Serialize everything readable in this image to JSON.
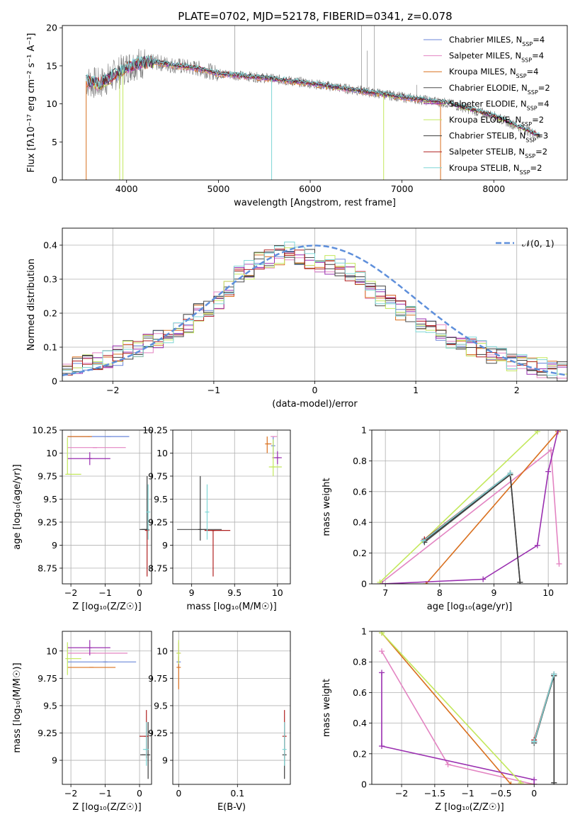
{
  "figure_title": "PLATE=0702, MJD=52178, FIBERID=0341, z=0.078",
  "colors": {
    "chabrier_miles": "#6a86d8",
    "salpeter_miles": "#e384c2",
    "kroupa_miles": "#d9701f",
    "chabrier_elodie": "#4b4b4b",
    "salpeter_elodie": "#9a2fb0",
    "kroupa_elodie": "#c3e85c",
    "chabrier_stelib": "#3d3d3d",
    "salpeter_stelib": "#b02020",
    "kroupa_stelib": "#7fd6d6",
    "data_spectrum": "#7a7a7a",
    "normal_curve": "#5e8fdb"
  },
  "legend": [
    {
      "key": "chabrier_miles",
      "label": "Chabrier MILES, N",
      "sub": "SSP",
      "suffix": "=4"
    },
    {
      "key": "salpeter_miles",
      "label": "Salpeter MILES, N",
      "sub": "SSP",
      "suffix": "=4"
    },
    {
      "key": "kroupa_miles",
      "label": "Kroupa MILES, N",
      "sub": "SSP",
      "suffix": "=4"
    },
    {
      "key": "chabrier_elodie",
      "label": "Chabrier ELODIE, N",
      "sub": "SSP",
      "suffix": "=2"
    },
    {
      "key": "salpeter_elodie",
      "label": "Salpeter ELODIE, N",
      "sub": "SSP",
      "suffix": "=4"
    },
    {
      "key": "kroupa_elodie",
      "label": "Kroupa ELODIE, N",
      "sub": "SSP",
      "suffix": "=2"
    },
    {
      "key": "chabrier_stelib",
      "label": "Chabrier STELIB, N",
      "sub": "SSP",
      "suffix": "=3"
    },
    {
      "key": "salpeter_stelib",
      "label": "Salpeter STELIB, N",
      "sub": "SSP",
      "suffix": "=2"
    },
    {
      "key": "kroupa_stelib",
      "label": "Kroupa STELIB, N",
      "sub": "SSP",
      "suffix": "=2"
    }
  ],
  "chart_data": [
    {
      "id": "spectrum",
      "type": "line",
      "xlabel": "wavelength [Angstrom, rest frame]",
      "ylabel": "Flux [fλ10⁻¹⁷ erg cm⁻² s⁻¹ A⁻¹]",
      "xlim": [
        3300,
        8800
      ],
      "ylim": [
        0,
        20.3
      ],
      "xticks": [
        4000,
        5000,
        6000,
        7000,
        8000
      ],
      "yticks": [
        0,
        5,
        10,
        15,
        20
      ],
      "grid": false,
      "legend_position": "top-right",
      "model_continuum": {
        "x": [
          3560,
          3700,
          3900,
          4000,
          4100,
          4300,
          4500,
          4800,
          5000,
          5500,
          6000,
          6500,
          7000,
          7200,
          7420
        ],
        "y": [
          13.0,
          12.6,
          14.0,
          14.8,
          15.3,
          15.5,
          15.1,
          14.6,
          14.0,
          13.4,
          12.7,
          11.8,
          10.9,
          10.4,
          10.0
        ]
      },
      "model_continuum_red": {
        "x": [
          6800,
          7000,
          7500,
          8000,
          8500
        ],
        "y": [
          11.0,
          10.9,
          10.1,
          8.4,
          5.8
        ]
      }
    },
    {
      "id": "residuals",
      "type": "step",
      "xlabel": "(data-model)/error",
      "ylabel": "Normed distribution",
      "xlim": [
        -2.5,
        2.5
      ],
      "ylim": [
        0,
        0.45
      ],
      "xticks": [
        -2,
        -1,
        0,
        1,
        2
      ],
      "yticks": [
        0.0,
        0.1,
        0.2,
        0.3,
        0.4
      ],
      "grid": true,
      "legend_position": "top-right",
      "reference_curve": {
        "name": "𝒩(0, 1)",
        "mean": 0,
        "sigma": 1
      },
      "bin_edges_start": -2.5,
      "bin_width": 0.1,
      "series_base": [
        0.04,
        0.045,
        0.05,
        0.06,
        0.065,
        0.075,
        0.09,
        0.1,
        0.11,
        0.12,
        0.14,
        0.16,
        0.17,
        0.2,
        0.22,
        0.24,
        0.27,
        0.31,
        0.33,
        0.35,
        0.36,
        0.37,
        0.38,
        0.37,
        0.36,
        0.35,
        0.34,
        0.33,
        0.32,
        0.3,
        0.27,
        0.25,
        0.23,
        0.21,
        0.19,
        0.17,
        0.15,
        0.14,
        0.12,
        0.11,
        0.1,
        0.09,
        0.08,
        0.07,
        0.06,
        0.05,
        0.05,
        0.04,
        0.035,
        0.03
      ]
    },
    {
      "id": "age_vs_Z",
      "type": "scatter",
      "xlabel": "Z [log₁₀(Z/Z☉)]",
      "ylabel": "age  [log₁₀(age/yr)]",
      "xlim": [
        -2.25,
        0.35
      ],
      "ylim": [
        8.58,
        10.25
      ],
      "xticks": [
        -2,
        -1,
        0
      ],
      "yticks": [
        8.75,
        9.0,
        9.25,
        9.5,
        9.75,
        10.0,
        10.25
      ],
      "grid": true,
      "points": [
        {
          "key": "chabrier_miles",
          "x": -0.9,
          "y": 10.18,
          "xerr": [
            1.2,
            0.6
          ],
          "yerr": [
            0,
            0
          ]
        },
        {
          "key": "salpeter_miles",
          "x": -1.3,
          "y": 10.06,
          "xerr": [
            0.8,
            0.9
          ],
          "yerr": [
            0,
            0
          ]
        },
        {
          "key": "kroupa_miles",
          "x": -1.45,
          "y": 10.18,
          "xerr": [
            0.65,
            0
          ],
          "yerr": [
            0,
            0
          ]
        },
        {
          "key": "chabrier_elodie",
          "x": 0.1,
          "y": 9.17,
          "xerr": [
            0.1,
            0.1
          ],
          "yerr": [
            0,
            0
          ]
        },
        {
          "key": "salpeter_elodie",
          "x": -1.45,
          "y": 9.94,
          "xerr": [
            0.65,
            0.6
          ],
          "yerr": [
            0.07,
            0.07
          ]
        },
        {
          "key": "kroupa_elodie",
          "x": -2.1,
          "y": 9.77,
          "xerr": [
            0,
            0.4
          ],
          "yerr": [
            0,
            0.4
          ]
        },
        {
          "key": "chabrier_stelib",
          "x": 0.22,
          "y": 9.17,
          "xerr": [
            0.15,
            0
          ],
          "yerr": [
            0,
            0.58
          ]
        },
        {
          "key": "salpeter_stelib",
          "x": 0.22,
          "y": 9.16,
          "xerr": [
            0,
            0
          ],
          "yerr": [
            0.5,
            0
          ]
        },
        {
          "key": "kroupa_stelib",
          "x": 0.25,
          "y": 9.36,
          "xerr": [
            0,
            0
          ],
          "yerr": [
            0.3,
            0.3
          ]
        }
      ]
    },
    {
      "id": "age_vs_mass",
      "type": "scatter",
      "xlabel": "mass [log₁₀(M/M☉)]",
      "ylabel": "",
      "xlim": [
        8.78,
        10.15
      ],
      "ylim": [
        8.58,
        10.25
      ],
      "xticks": [
        9.0,
        9.5,
        10.0
      ],
      "yticks": [
        8.75,
        9.0,
        9.25,
        9.5,
        9.75,
        10.0,
        10.25
      ],
      "grid": true,
      "points": [
        {
          "key": "chabrier_miles",
          "x": 9.95,
          "y": 10.08,
          "xerr": [
            0,
            0
          ],
          "yerr": [
            0.1,
            0.1
          ]
        },
        {
          "key": "salpeter_miles",
          "x": 9.97,
          "y": 10.18,
          "xerr": [
            0.05,
            0
          ],
          "yerr": [
            0,
            0
          ]
        },
        {
          "key": "kroupa_miles",
          "x": 9.88,
          "y": 10.1,
          "xerr": [
            0,
            0.05
          ],
          "yerr": [
            0.1,
            0.08
          ]
        },
        {
          "key": "chabrier_elodie",
          "x": 9.15,
          "y": 9.17,
          "xerr": [
            0.32,
            0.2
          ],
          "yerr": [
            0,
            0
          ]
        },
        {
          "key": "salpeter_elodie",
          "x": 10.0,
          "y": 9.95,
          "xerr": [
            0.06,
            0.05
          ],
          "yerr": [
            0.07,
            0.07
          ]
        },
        {
          "key": "kroupa_elodie",
          "x": 9.95,
          "y": 9.85,
          "xerr": [
            0.05,
            0.1
          ],
          "yerr": [
            0.1,
            0.3
          ]
        },
        {
          "key": "chabrier_stelib",
          "x": 9.1,
          "y": 9.17,
          "xerr": [
            0,
            0
          ],
          "yerr": [
            0.12,
            0.58
          ]
        },
        {
          "key": "salpeter_stelib",
          "x": 9.25,
          "y": 9.16,
          "xerr": [
            0.1,
            0.2
          ],
          "yerr": [
            0.5,
            0
          ]
        },
        {
          "key": "kroupa_stelib",
          "x": 9.18,
          "y": 9.36,
          "xerr": [
            0,
            0
          ],
          "yerr": [
            0.3,
            0.3
          ]
        }
      ]
    },
    {
      "id": "weight_vs_age",
      "type": "line",
      "xlabel": "age  [log₁₀(age/yr)]",
      "ylabel": "mass weight",
      "xlim": [
        6.75,
        10.35
      ],
      "ylim": [
        0,
        1.0
      ],
      "xticks": [
        7,
        8,
        9,
        10
      ],
      "yticks": [
        0.0,
        0.2,
        0.4,
        0.6,
        0.8,
        1.0
      ],
      "grid": true,
      "series": [
        {
          "key": "chabrier_miles",
          "x": [
            7.7,
            9.3
          ],
          "y": [
            0.28,
            0.72
          ]
        },
        {
          "key": "salpeter_miles",
          "x": [
            6.9,
            10.05,
            10.2
          ],
          "y": [
            0.0,
            0.87,
            0.13
          ]
        },
        {
          "key": "kroupa_miles",
          "x": [
            7.75,
            10.18
          ],
          "y": [
            0.0,
            0.99
          ]
        },
        {
          "key": "chabrier_elodie",
          "x": [
            7.72,
            9.3,
            9.48
          ],
          "y": [
            0.27,
            0.71,
            0.01
          ]
        },
        {
          "key": "salpeter_elodie",
          "x": [
            6.95,
            8.8,
            9.8,
            10.0,
            10.18
          ],
          "y": [
            0.0,
            0.03,
            0.25,
            0.73,
            1.0
          ]
        },
        {
          "key": "kroupa_elodie",
          "x": [
            6.9,
            9.8
          ],
          "y": [
            0.01,
            0.99
          ]
        },
        {
          "key": "chabrier_stelib",
          "x": [
            7.72,
            9.3,
            9.48
          ],
          "y": [
            0.28,
            0.71,
            0.01
          ]
        },
        {
          "key": "salpeter_stelib",
          "x": [
            7.72,
            9.3
          ],
          "y": [
            0.29,
            0.72
          ]
        },
        {
          "key": "kroupa_stelib",
          "x": [
            7.7,
            9.3
          ],
          "y": [
            0.28,
            0.72
          ]
        }
      ]
    },
    {
      "id": "mass_vs_Z",
      "type": "scatter",
      "xlabel": "Z [log₁₀(Z/Z☉)]",
      "ylabel": "mass [log₁₀(M/M☉)]",
      "xlim": [
        -2.25,
        0.35
      ],
      "ylim": [
        8.78,
        10.18
      ],
      "xticks": [
        -2,
        -1,
        0
      ],
      "yticks": [
        9.0,
        9.25,
        9.5,
        9.75,
        10.0
      ],
      "grid": true,
      "points": [
        {
          "key": "chabrier_miles",
          "x": -1.0,
          "y": 9.9,
          "xerr": [
            1.1,
            0.9
          ],
          "yerr": [
            0,
            0
          ]
        },
        {
          "key": "salpeter_miles",
          "x": -1.35,
          "y": 9.98,
          "xerr": [
            0.75,
            1.0
          ],
          "yerr": [
            0,
            0
          ]
        },
        {
          "key": "kroupa_miles",
          "x": -1.4,
          "y": 9.85,
          "xerr": [
            0.7,
            0.7
          ],
          "yerr": [
            0,
            0
          ]
        },
        {
          "key": "chabrier_elodie",
          "x": 0.12,
          "y": 9.05,
          "xerr": [
            0.1,
            0.05
          ],
          "yerr": [
            0,
            0
          ]
        },
        {
          "key": "salpeter_elodie",
          "x": -1.45,
          "y": 10.03,
          "xerr": [
            0.65,
            0.6
          ],
          "yerr": [
            0.07,
            0.07
          ]
        },
        {
          "key": "kroupa_elodie",
          "x": -2.1,
          "y": 9.93,
          "xerr": [
            0,
            0.4
          ],
          "yerr": [
            0.15,
            0.15
          ]
        },
        {
          "key": "chabrier_stelib",
          "x": 0.25,
          "y": 9.05,
          "xerr": [
            0,
            0
          ],
          "yerr": [
            0.22,
            0.3
          ]
        },
        {
          "key": "salpeter_stelib",
          "x": 0.2,
          "y": 9.22,
          "xerr": [
            0.2,
            0
          ],
          "yerr": [
            0.2,
            0.24
          ]
        },
        {
          "key": "kroupa_stelib",
          "x": 0.2,
          "y": 9.1,
          "xerr": [
            0.1,
            0.05
          ],
          "yerr": [
            0.15,
            0.25
          ]
        }
      ]
    },
    {
      "id": "mass_vs_ebv",
      "type": "scatter",
      "xlabel": "E(B-V)",
      "ylabel": "",
      "xlim": [
        -0.01,
        0.19
      ],
      "ylim": [
        8.78,
        10.18
      ],
      "xticks": [
        0.0,
        0.1
      ],
      "yticks": [
        9.0,
        9.25,
        9.5,
        9.75,
        10.0
      ],
      "grid": true,
      "points": [
        {
          "key": "chabrier_miles",
          "x": 0.0,
          "y": 9.9,
          "xerr": [
            0,
            0
          ],
          "yerr": [
            0.05,
            0.05
          ]
        },
        {
          "key": "salpeter_miles",
          "x": 0.0,
          "y": 9.98,
          "xerr": [
            0,
            0
          ],
          "yerr": [
            0.1,
            0.1
          ]
        },
        {
          "key": "kroupa_miles",
          "x": 0.0,
          "y": 9.85,
          "xerr": [
            0,
            0
          ],
          "yerr": [
            0.2,
            0.1
          ]
        },
        {
          "key": "kroupa_elodie",
          "x": 0.0,
          "y": 9.98,
          "xerr": [
            0,
            0
          ],
          "yerr": [
            0.1,
            0.12
          ]
        },
        {
          "key": "chabrier_stelib",
          "x": 0.18,
          "y": 9.05,
          "xerr": [
            0,
            0
          ],
          "yerr": [
            0.22,
            0.3
          ]
        },
        {
          "key": "salpeter_stelib",
          "x": 0.18,
          "y": 9.22,
          "xerr": [
            0,
            0
          ],
          "yerr": [
            0.2,
            0.24
          ]
        },
        {
          "key": "kroupa_stelib",
          "x": 0.18,
          "y": 9.1,
          "xerr": [
            0,
            0
          ],
          "yerr": [
            0.15,
            0.25
          ]
        }
      ]
    },
    {
      "id": "weight_vs_Z",
      "type": "line",
      "xlabel": "Z [log₁₀(Z/Z☉)]",
      "ylabel": "mass weight",
      "xlim": [
        -2.45,
        0.5
      ],
      "ylim": [
        0,
        1.0
      ],
      "xticks": [
        -2.0,
        -1.5,
        -1.0,
        -0.5,
        0.0
      ],
      "yticks": [
        0.0,
        0.2,
        0.4,
        0.6,
        0.8,
        1.0
      ],
      "grid": true,
      "series": [
        {
          "key": "chabrier_miles",
          "x": [
            0.0,
            0.3
          ],
          "y": [
            0.28,
            0.72
          ]
        },
        {
          "key": "salpeter_miles",
          "x": [
            -2.3,
            -1.3,
            0.0
          ],
          "y": [
            0.87,
            0.13,
            0.0
          ]
        },
        {
          "key": "kroupa_miles",
          "x": [
            -2.3,
            -0.35,
            0.0
          ],
          "y": [
            0.99,
            0.0,
            0.0
          ]
        },
        {
          "key": "chabrier_elodie",
          "x": [
            0.0,
            0.3,
            0.3
          ],
          "y": [
            0.27,
            0.71,
            0.01
          ]
        },
        {
          "key": "salpeter_elodie",
          "x": [
            -2.3,
            -2.3,
            0.0,
            0.0
          ],
          "y": [
            0.73,
            0.25,
            0.03,
            0.0
          ]
        },
        {
          "key": "kroupa_elodie",
          "x": [
            -2.3,
            -0.2
          ],
          "y": [
            0.99,
            0.01
          ]
        },
        {
          "key": "chabrier_stelib",
          "x": [
            0.0,
            0.3,
            0.3
          ],
          "y": [
            0.28,
            0.71,
            0.01
          ]
        },
        {
          "key": "salpeter_stelib",
          "x": [
            0.0,
            0.3
          ],
          "y": [
            0.29,
            0.72
          ]
        },
        {
          "key": "kroupa_stelib",
          "x": [
            0.0,
            0.3
          ],
          "y": [
            0.28,
            0.72
          ]
        }
      ]
    }
  ]
}
